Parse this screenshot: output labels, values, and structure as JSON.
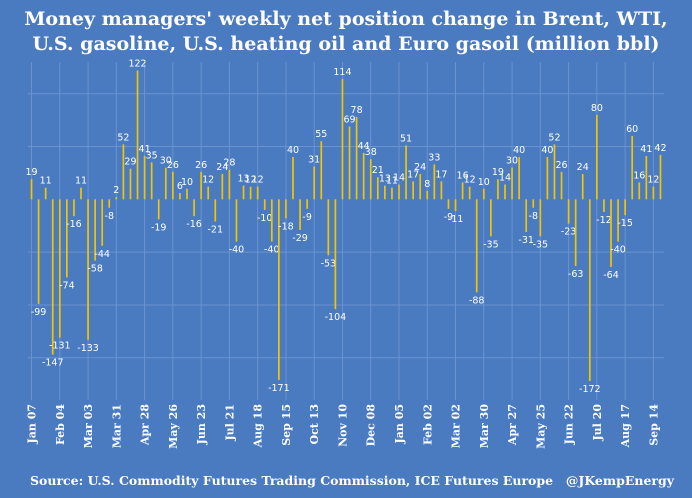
{
  "chart_data": {
    "type": "bar",
    "title": "Money managers' weekly net position change in Brent, WTI,",
    "subtitle": "U.S. gasoline, U.S. heating oil and Euro gasoil (million bbl)",
    "source": "Source: U.S. Commodity Futures Trading Commission, ICE Futures Europe",
    "credit": "@JKempEnergy",
    "colors": {
      "bar": "#f5c400",
      "background": "#4a7ac0",
      "grid": "#6b93cf",
      "text": "#ffffff"
    },
    "grid": true,
    "ylim": [
      -190,
      130
    ],
    "ticks": [
      "Jan 07",
      "Feb 04",
      "Mar 03",
      "Mar 31",
      "Apr 28",
      "May 26",
      "Jun 23",
      "Jul 21",
      "Aug 18",
      "Sep 15",
      "Oct 13",
      "Nov 10",
      "Dec 08",
      "Jan 05",
      "Feb 02",
      "Mar 02",
      "Mar 30",
      "Apr 27",
      "May 25",
      "Jun 22",
      "Jul 20",
      "Aug 17",
      "Sep 14"
    ],
    "values": [
      19,
      -99,
      11,
      -147,
      -131,
      -74,
      -16,
      11,
      -133,
      -58,
      -44,
      -8,
      2,
      52,
      29,
      122,
      41,
      35,
      -19,
      30,
      26,
      6,
      10,
      -16,
      26,
      12,
      -21,
      24,
      28,
      -40,
      13,
      12,
      12,
      -10,
      -40,
      -171,
      -18,
      40,
      -29,
      -9,
      31,
      55,
      -53,
      -104,
      114,
      69,
      78,
      44,
      38,
      21,
      13,
      11,
      14,
      51,
      17,
      24,
      8,
      33,
      17,
      -9,
      -11,
      16,
      12,
      -88,
      10,
      -35,
      19,
      14,
      30,
      40,
      -31,
      -8,
      -35,
      40,
      52,
      26,
      -23,
      -63,
      24,
      -172,
      80,
      -12,
      -64,
      -40,
      -15,
      60,
      16,
      41,
      12,
      42
    ]
  }
}
